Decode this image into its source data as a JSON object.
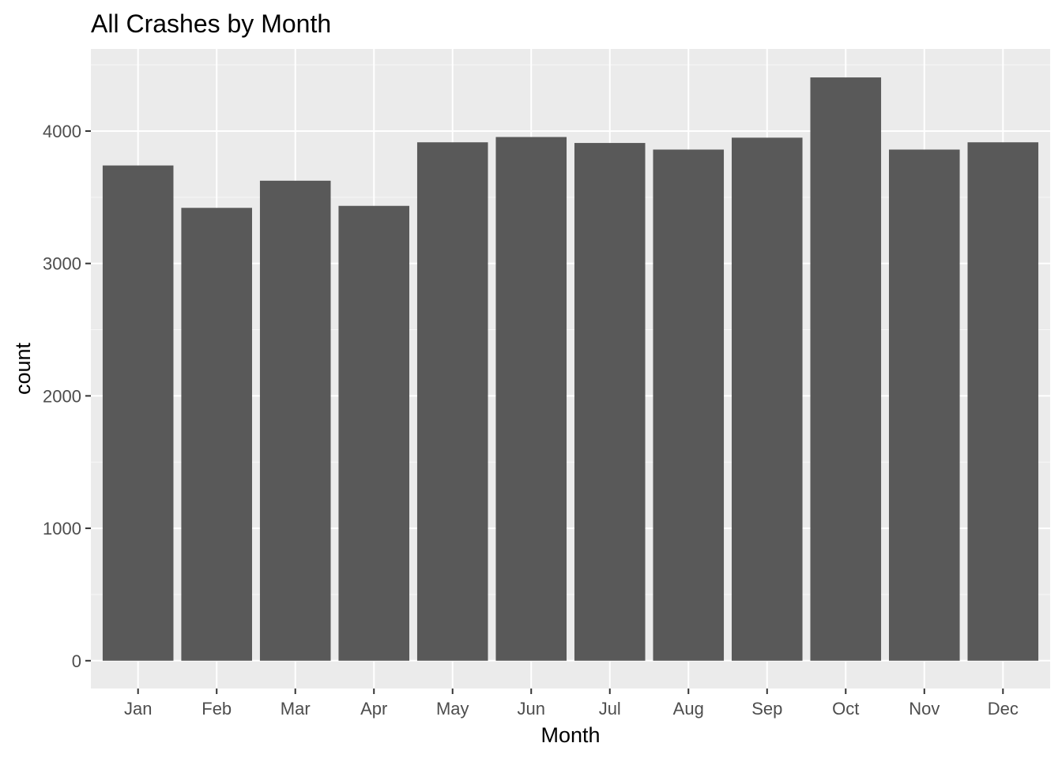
{
  "chart_data": {
    "type": "bar",
    "title": "All Crashes by Month",
    "xlabel": "Month",
    "ylabel": "count",
    "categories": [
      "Jan",
      "Feb",
      "Mar",
      "Apr",
      "May",
      "Jun",
      "Jul",
      "Aug",
      "Sep",
      "Oct",
      "Nov",
      "Dec"
    ],
    "values": [
      3740,
      3420,
      3625,
      3435,
      3915,
      3955,
      3910,
      3860,
      3950,
      4405,
      3860,
      3915
    ],
    "ylim": [
      -210,
      4620
    ],
    "yticks": [
      0,
      1000,
      2000,
      3000,
      4000
    ],
    "ytick_labels": [
      "0",
      "1000",
      "2000",
      "3000",
      "4000"
    ],
    "grid": true,
    "legend": "none"
  },
  "colors": {
    "panel_background": "#ebebeb",
    "grid_major": "#ffffff",
    "bar_fill": "#595959",
    "tick_text": "#4d4d4d",
    "axis_tick": "#333333"
  }
}
